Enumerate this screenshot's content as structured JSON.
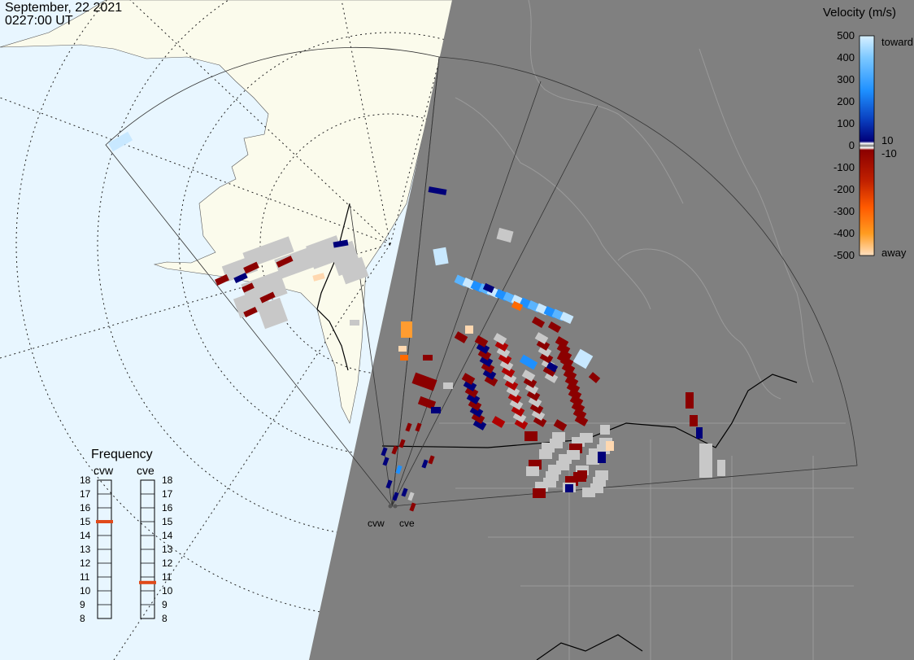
{
  "header": {
    "date": "September, 22 2021",
    "time": "0227:00 UT"
  },
  "colorbar": {
    "title": "Velocity (m/s)",
    "range": [
      -500,
      500
    ],
    "labels": [
      {
        "value": 500,
        "text": "500"
      },
      {
        "value": 400,
        "text": "400"
      },
      {
        "value": 300,
        "text": "300"
      },
      {
        "value": 200,
        "text": "200"
      },
      {
        "value": 100,
        "text": "100"
      },
      {
        "value": 0,
        "text": "0"
      },
      {
        "value": -100,
        "text": "-100"
      },
      {
        "value": -200,
        "text": "-200"
      },
      {
        "value": -300,
        "text": "-300"
      },
      {
        "value": -400,
        "text": "-400"
      },
      {
        "value": -500,
        "text": "-500"
      }
    ],
    "side_labels": {
      "toward": "toward",
      "away": "away",
      "pos_threshold": "10",
      "neg_threshold": "-10"
    },
    "colors": {
      "toward_max": "#c8e8ff",
      "toward_mid": "#1e90ff",
      "toward_min": "#00007a",
      "ground": "#c8c8c8",
      "away_min": "#8b0000",
      "away_mid": "#ff6a00",
      "away_max": "#ffd8b0"
    }
  },
  "frequency": {
    "title": "Frequency",
    "radars": [
      {
        "name": "cvw",
        "frequency_mhz": 15
      },
      {
        "name": "cve",
        "frequency_mhz": 10.6
      }
    ],
    "ticks": [
      18,
      17,
      16,
      15,
      14,
      13,
      12,
      11,
      10,
      9,
      8
    ],
    "marker_color": "#e04a1a"
  },
  "sites": [
    {
      "name": "cvw"
    },
    {
      "name": "cve"
    }
  ],
  "map": {
    "ocean_color": "#e8f6ff",
    "land_color": "#fbfbec",
    "night_color": "#808080",
    "night_boundary_color": "#9a9a9a"
  }
}
